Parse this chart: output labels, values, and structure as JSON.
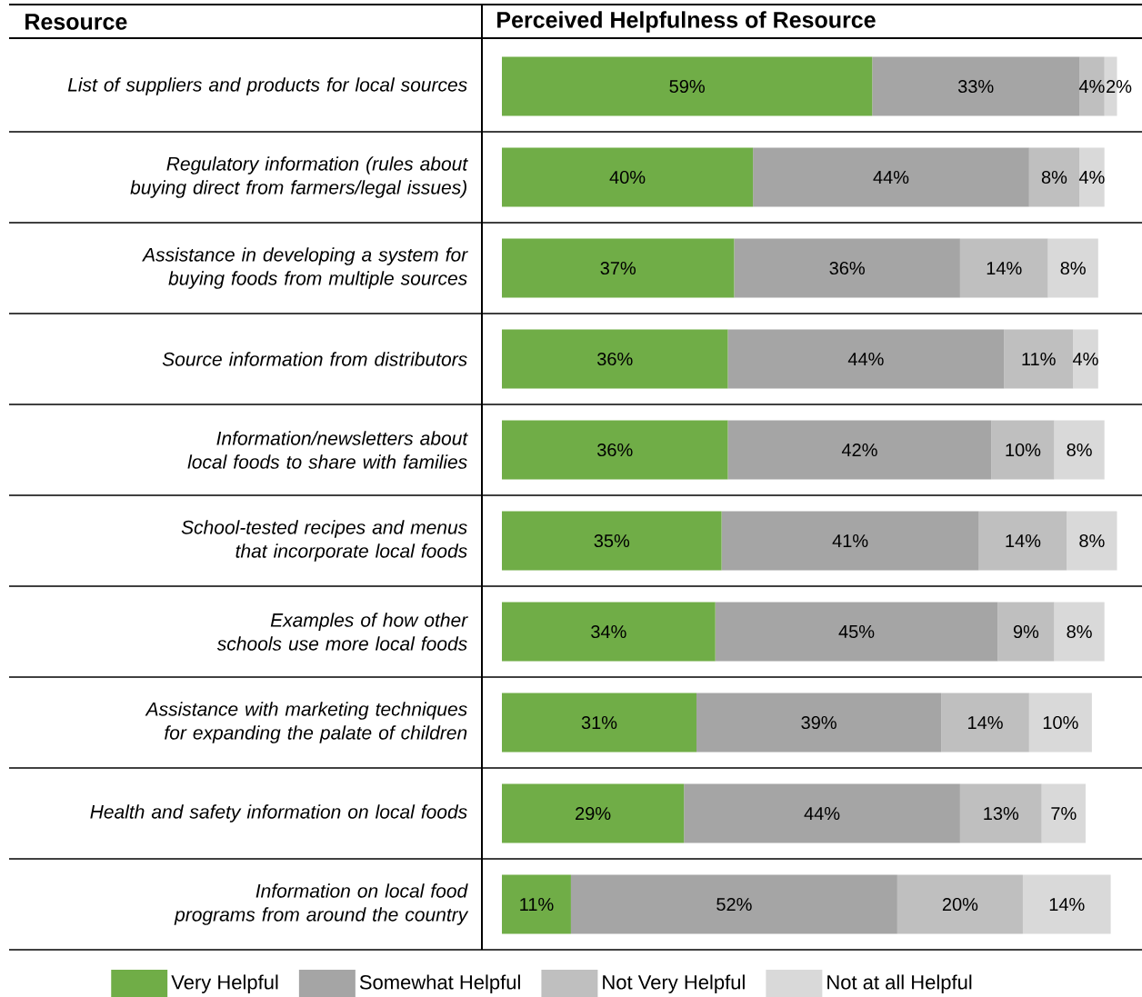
{
  "chart_data": {
    "type": "bar",
    "orientation": "horizontal",
    "stacked": true,
    "title": "Perceived Helpfulness of Resource",
    "ylabel": "Resource",
    "categories": [
      "List of suppliers and products for local sources",
      "Regulatory information (rules about buying direct from farmers/legal issues)",
      "Assistance in developing a system for buying foods from multiple sources",
      "Source information from distributors",
      "Information/newsletters about local foods to share with families",
      "School-tested recipes and menus that incorporate local foods",
      "Examples of how other schools use more local foods",
      "Assistance with marketing techniques for expanding the palate of children",
      "Health and safety information on local foods",
      "Information on local food programs from around the country"
    ],
    "series": [
      {
        "name": "Very Helpful",
        "color": "#70ad47",
        "values": [
          59,
          40,
          37,
          36,
          36,
          35,
          34,
          31,
          29,
          11
        ],
        "value_labels": [
          "59%",
          "40%",
          "37%",
          "36%",
          "36%",
          "35%",
          "34%",
          "31%",
          "29%",
          "11%"
        ]
      },
      {
        "name": "Somewhat Helpful",
        "color": "#a5a5a5",
        "values": [
          33,
          44,
          36,
          44,
          42,
          41,
          45,
          39,
          44,
          52
        ],
        "value_labels": [
          "33%",
          "44%",
          "36%",
          "44%",
          "42%",
          "41%",
          "45%",
          "39%",
          "44%",
          "52%"
        ]
      },
      {
        "name": "Not Very Helpful",
        "color": "#bfbfbf",
        "values": [
          4,
          8,
          14,
          11,
          10,
          14,
          9,
          14,
          13,
          20
        ],
        "value_labels": [
          "4%",
          "8%",
          "14%",
          "11%",
          "10%",
          "14%",
          "9%",
          "14%",
          "13%",
          "20%"
        ]
      },
      {
        "name": "Not at all Helpful",
        "color": "#d9d9d9",
        "values": [
          2,
          4,
          8,
          4,
          8,
          8,
          8,
          10,
          7,
          14
        ],
        "value_labels": [
          "2%",
          "4%",
          "8%",
          "4%",
          "8%",
          "8%",
          "8%",
          "10%",
          "7%",
          "14%"
        ]
      }
    ],
    "tick_labels": "y",
    "legend": "bottom"
  }
}
